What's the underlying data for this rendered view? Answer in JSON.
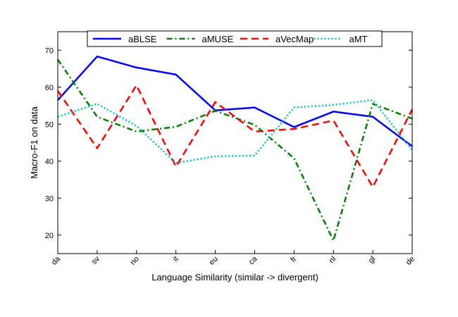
{
  "chart_data": {
    "type": "line",
    "title": "",
    "xlabel": "Language Similarity (similar -> divergent)",
    "ylabel": "Macro-F1 on data",
    "categories": [
      "da",
      "sv",
      "no",
      "it",
      "eu",
      "ca",
      "fr",
      "nl",
      "gl",
      "de"
    ],
    "ylim": [
      15,
      75
    ],
    "yticks": [
      20,
      30,
      40,
      50,
      60,
      70
    ],
    "legend_position": "top",
    "series": [
      {
        "name": "aBLSE",
        "color": "#0000ff",
        "style": "solid",
        "values": [
          56.5,
          68.3,
          65.3,
          63.4,
          53.7,
          54.5,
          49.2,
          53.4,
          52.0,
          44.0
        ]
      },
      {
        "name": "aMUSE",
        "color": "#008000",
        "style": "dashdot",
        "values": [
          67.5,
          52.0,
          48.0,
          49.3,
          53.6,
          49.8,
          40.8,
          18.5,
          55.5,
          51.5
        ]
      },
      {
        "name": "aVecMap",
        "color": "#ff0000",
        "style": "dashed",
        "values": [
          59.0,
          43.5,
          60.5,
          38.5,
          56.0,
          48.0,
          48.7,
          51.0,
          33.0,
          54.0
        ]
      },
      {
        "name": "aMT",
        "color": "#00bfbf",
        "style": "dotted",
        "values": [
          52.0,
          55.5,
          49.5,
          39.5,
          41.3,
          41.5,
          54.5,
          55.2,
          56.5,
          43.0
        ]
      }
    ]
  }
}
